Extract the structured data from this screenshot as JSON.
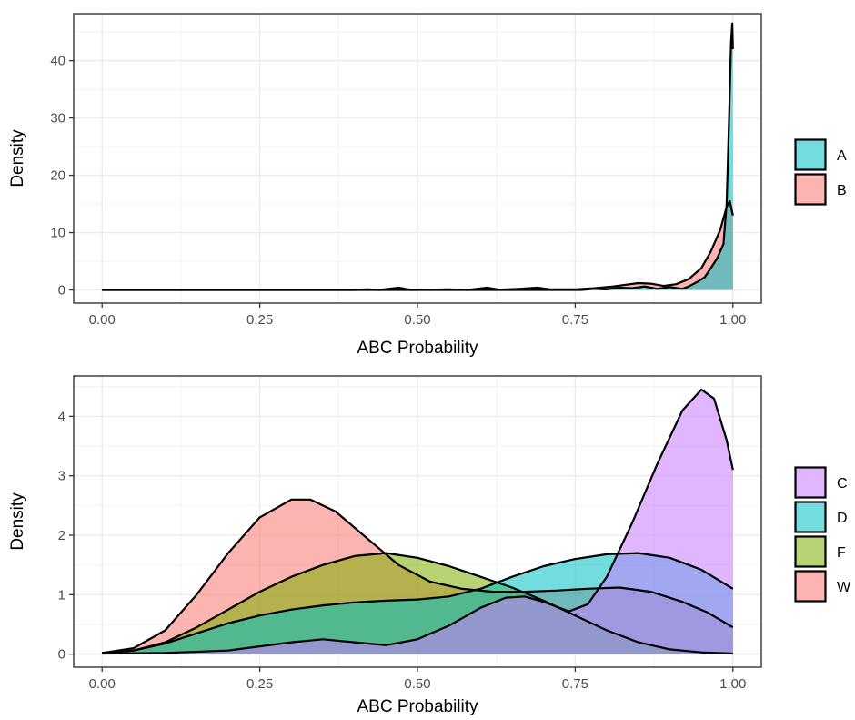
{
  "chart_data": [
    {
      "type": "area",
      "xlabel": "ABC Probability",
      "ylabel": "Density",
      "xlim": [
        0,
        1
      ],
      "ylim": [
        -2.3,
        48.2
      ],
      "x_ticks": [
        0,
        0.25,
        0.5,
        0.75,
        1
      ],
      "x_tick_labels": [
        "0.00",
        "0.25",
        "0.50",
        "0.75",
        "1.00"
      ],
      "y_ticks": [
        0,
        10,
        20,
        30,
        40
      ],
      "y_tick_labels": [
        "0",
        "10",
        "20",
        "30",
        "40"
      ],
      "grid": true,
      "legend_position": "right",
      "series": [
        {
          "name": "B",
          "color": "#f8766d",
          "points": [
            [
              0,
              0
            ],
            [
              0.4,
              0
            ],
            [
              0.42,
              0.1
            ],
            [
              0.44,
              0
            ],
            [
              0.47,
              0.4
            ],
            [
              0.49,
              0
            ],
            [
              0.52,
              0.05
            ],
            [
              0.55,
              0.1
            ],
            [
              0.58,
              0
            ],
            [
              0.61,
              0.4
            ],
            [
              0.63,
              0.05
            ],
            [
              0.66,
              0.2
            ],
            [
              0.69,
              0.4
            ],
            [
              0.71,
              0.1
            ],
            [
              0.75,
              0.1
            ],
            [
              0.78,
              0.3
            ],
            [
              0.81,
              0.6
            ],
            [
              0.83,
              0.9
            ],
            [
              0.85,
              1.2
            ],
            [
              0.87,
              1.1
            ],
            [
              0.89,
              0.7
            ],
            [
              0.91,
              1.0
            ],
            [
              0.93,
              1.9
            ],
            [
              0.95,
              3.8
            ],
            [
              0.965,
              6.7
            ],
            [
              0.98,
              10.5
            ],
            [
              0.99,
              14.5
            ],
            [
              0.995,
              15.5
            ],
            [
              1.0,
              13
            ]
          ]
        },
        {
          "name": "A",
          "color": "#00bfc4",
          "points": [
            [
              0,
              0
            ],
            [
              0.76,
              0
            ],
            [
              0.78,
              0.2
            ],
            [
              0.8,
              0.1
            ],
            [
              0.82,
              0.4
            ],
            [
              0.84,
              0.3
            ],
            [
              0.86,
              0.6
            ],
            [
              0.88,
              0.2
            ],
            [
              0.9,
              0.5
            ],
            [
              0.92,
              0.2
            ],
            [
              0.93,
              0.6
            ],
            [
              0.945,
              1.5
            ],
            [
              0.955,
              2.2
            ],
            [
              0.965,
              3.8
            ],
            [
              0.975,
              5.5
            ],
            [
              0.985,
              8
            ],
            [
              0.99,
              15
            ],
            [
              0.994,
              30
            ],
            [
              0.997,
              43
            ],
            [
              0.999,
              46.5
            ],
            [
              1.0,
              42
            ]
          ]
        }
      ]
    },
    {
      "type": "area",
      "xlabel": "ABC Probability",
      "ylabel": "Density",
      "xlim": [
        0,
        1
      ],
      "ylim": [
        -0.22,
        4.68
      ],
      "x_ticks": [
        0,
        0.25,
        0.5,
        0.75,
        1
      ],
      "x_tick_labels": [
        "0.00",
        "0.25",
        "0.50",
        "0.75",
        "1.00"
      ],
      "y_ticks": [
        0,
        1,
        2,
        3,
        4
      ],
      "y_tick_labels": [
        "0",
        "1",
        "2",
        "3",
        "4"
      ],
      "grid": true,
      "legend_position": "right",
      "series": [
        {
          "name": "W",
          "color": "#f8766d",
          "points": [
            [
              0,
              0.02
            ],
            [
              0.05,
              0.1
            ],
            [
              0.1,
              0.4
            ],
            [
              0.15,
              1.0
            ],
            [
              0.2,
              1.7
            ],
            [
              0.25,
              2.3
            ],
            [
              0.3,
              2.6
            ],
            [
              0.33,
              2.6
            ],
            [
              0.37,
              2.4
            ],
            [
              0.42,
              1.95
            ],
            [
              0.47,
              1.5
            ],
            [
              0.52,
              1.22
            ],
            [
              0.57,
              1.1
            ],
            [
              0.62,
              1.05
            ],
            [
              0.67,
              1.05
            ],
            [
              0.72,
              1.07
            ],
            [
              0.77,
              1.1
            ],
            [
              0.82,
              1.12
            ],
            [
              0.87,
              1.05
            ],
            [
              0.92,
              0.88
            ],
            [
              0.96,
              0.7
            ],
            [
              1.0,
              0.45
            ]
          ]
        },
        {
          "name": "F",
          "color": "#7cae00",
          "points": [
            [
              0,
              0.02
            ],
            [
              0.05,
              0.06
            ],
            [
              0.1,
              0.2
            ],
            [
              0.15,
              0.45
            ],
            [
              0.2,
              0.75
            ],
            [
              0.25,
              1.05
            ],
            [
              0.3,
              1.3
            ],
            [
              0.35,
              1.5
            ],
            [
              0.4,
              1.65
            ],
            [
              0.45,
              1.7
            ],
            [
              0.5,
              1.62
            ],
            [
              0.55,
              1.48
            ],
            [
              0.6,
              1.3
            ],
            [
              0.65,
              1.12
            ],
            [
              0.7,
              0.9
            ],
            [
              0.75,
              0.65
            ],
            [
              0.8,
              0.4
            ],
            [
              0.85,
              0.2
            ],
            [
              0.9,
              0.08
            ],
            [
              0.95,
              0.03
            ],
            [
              1.0,
              0.01
            ]
          ]
        },
        {
          "name": "D",
          "color": "#00bfc4",
          "points": [
            [
              0,
              0.02
            ],
            [
              0.05,
              0.06
            ],
            [
              0.1,
              0.18
            ],
            [
              0.15,
              0.35
            ],
            [
              0.2,
              0.52
            ],
            [
              0.25,
              0.65
            ],
            [
              0.3,
              0.75
            ],
            [
              0.35,
              0.82
            ],
            [
              0.4,
              0.87
            ],
            [
              0.45,
              0.9
            ],
            [
              0.5,
              0.92
            ],
            [
              0.55,
              0.97
            ],
            [
              0.6,
              1.1
            ],
            [
              0.65,
              1.3
            ],
            [
              0.7,
              1.48
            ],
            [
              0.75,
              1.6
            ],
            [
              0.8,
              1.68
            ],
            [
              0.85,
              1.7
            ],
            [
              0.9,
              1.62
            ],
            [
              0.95,
              1.42
            ],
            [
              1.0,
              1.1
            ]
          ]
        },
        {
          "name": "C",
          "color": "#c77cff",
          "points": [
            [
              0,
              0.01
            ],
            [
              0.1,
              0.02
            ],
            [
              0.2,
              0.06
            ],
            [
              0.25,
              0.13
            ],
            [
              0.3,
              0.2
            ],
            [
              0.35,
              0.25
            ],
            [
              0.4,
              0.2
            ],
            [
              0.45,
              0.15
            ],
            [
              0.5,
              0.25
            ],
            [
              0.55,
              0.48
            ],
            [
              0.6,
              0.78
            ],
            [
              0.64,
              0.95
            ],
            [
              0.67,
              0.97
            ],
            [
              0.7,
              0.88
            ],
            [
              0.74,
              0.72
            ],
            [
              0.77,
              0.84
            ],
            [
              0.8,
              1.3
            ],
            [
              0.84,
              2.2
            ],
            [
              0.88,
              3.2
            ],
            [
              0.92,
              4.1
            ],
            [
              0.95,
              4.45
            ],
            [
              0.97,
              4.3
            ],
            [
              0.99,
              3.6
            ],
            [
              1.0,
              3.1
            ]
          ]
        }
      ]
    }
  ]
}
